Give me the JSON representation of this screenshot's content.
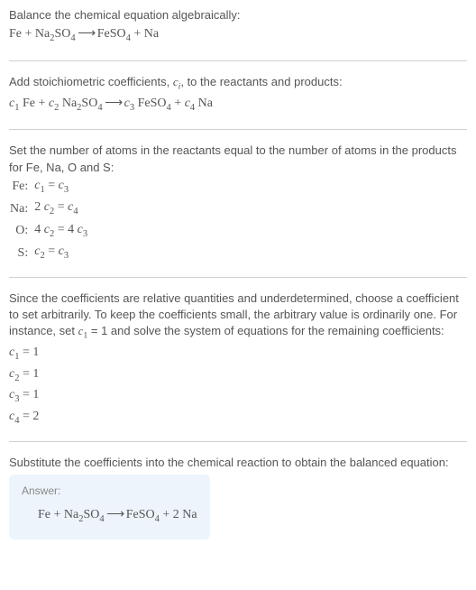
{
  "section1": {
    "intro": "Balance the chemical equation algebraically:",
    "eq_parts": {
      "p1": "Fe + Na",
      "s1": "2",
      "p2": "SO",
      "s2": "4",
      "arrow": " ⟶ ",
      "p3": "FeSO",
      "s3": "4",
      "p4": " + Na"
    }
  },
  "section2": {
    "intro_a": "Add stoichiometric coefficients, ",
    "intro_ci": "c",
    "intro_isub": "i",
    "intro_b": ", to the reactants and products:",
    "eq": {
      "c1": "c",
      "c1s": "1",
      "t1": " Fe + ",
      "c2": "c",
      "c2s": "2",
      "t2": " Na",
      "t2s": "2",
      "t3": "SO",
      "t3s": "4",
      "arrow": " ⟶ ",
      "c3": "c",
      "c3s": "3",
      "t4": " FeSO",
      "t4s": "4",
      "t5": " + ",
      "c4": "c",
      "c4s": "4",
      "t6": " Na"
    }
  },
  "section3": {
    "intro": "Set the number of atoms in the reactants equal to the number of atoms in the products for Fe, Na, O and S:",
    "rows": [
      {
        "elem": "Fe:",
        "l1": "c",
        "ls1": "1",
        "mid": " = ",
        "r1": "c",
        "rs1": "3",
        "pre": ""
      },
      {
        "elem": "Na:",
        "l1": "c",
        "ls1": "2",
        "mid": " = ",
        "r1": "c",
        "rs1": "4",
        "pre": "2 "
      },
      {
        "elem": "O:",
        "l1": "c",
        "ls1": "2",
        "mid": " = 4 ",
        "r1": "c",
        "rs1": "3",
        "pre": "4 "
      },
      {
        "elem": "S:",
        "l1": "c",
        "ls1": "2",
        "mid": " = ",
        "r1": "c",
        "rs1": "3",
        "pre": ""
      }
    ]
  },
  "section4": {
    "intro_a": "Since the coefficients are relative quantities and underdetermined, choose a coefficient to set arbitrarily. To keep the coefficients small, the arbitrary value is ordinarily one. For instance, set ",
    "c1": "c",
    "c1s": "1",
    "intro_b": " = 1 and solve the system of equations for the remaining coefficients:",
    "coefs": [
      {
        "c": "c",
        "s": "1",
        "v": " = 1"
      },
      {
        "c": "c",
        "s": "2",
        "v": " = 1"
      },
      {
        "c": "c",
        "s": "3",
        "v": " = 1"
      },
      {
        "c": "c",
        "s": "4",
        "v": " = 2"
      }
    ]
  },
  "section5": {
    "intro": "Substitute the coefficients into the chemical reaction to obtain the balanced equation:",
    "answer_label": "Answer:",
    "eq": {
      "p1": "Fe + Na",
      "s1": "2",
      "p2": "SO",
      "s2": "4",
      "arrow": " ⟶ ",
      "p3": "FeSO",
      "s3": "4",
      "p4": " + 2 Na"
    }
  }
}
